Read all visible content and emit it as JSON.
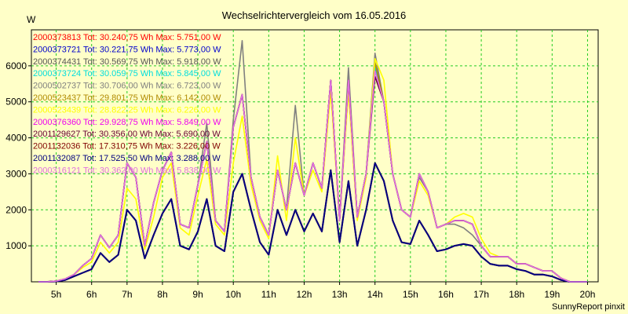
{
  "chart_data": {
    "type": "line",
    "title": "Wechselrichtervergleich vom 16.05.2016",
    "ylabel": "W",
    "footer": "SunnyReport pinxit",
    "ylim": [
      0,
      7000
    ],
    "yticks": [
      1000,
      2000,
      3000,
      4000,
      5000,
      6000
    ],
    "xlim": [
      4.3,
      20.3
    ],
    "xticks": [
      5,
      6,
      7,
      8,
      9,
      10,
      11,
      12,
      13,
      14,
      15,
      16,
      17,
      18,
      19,
      20
    ],
    "xticklabels": [
      "5h",
      "6h",
      "7h",
      "8h",
      "9h",
      "10h",
      "11h",
      "12h",
      "13h",
      "14h",
      "15h",
      "16h",
      "17h",
      "18h",
      "19h",
      "20h"
    ],
    "grid": true,
    "legend_position": "top-left",
    "x": [
      4.5,
      4.75,
      5,
      5.25,
      5.5,
      5.75,
      6,
      6.25,
      6.5,
      6.75,
      7,
      7.25,
      7.5,
      7.75,
      8,
      8.25,
      8.5,
      8.75,
      9,
      9.25,
      9.5,
      9.75,
      10,
      10.25,
      10.5,
      10.75,
      11,
      11.25,
      11.5,
      11.75,
      12,
      12.25,
      12.5,
      12.75,
      13,
      13.25,
      13.5,
      13.75,
      14,
      14.25,
      14.5,
      14.75,
      15,
      15.25,
      15.5,
      15.75,
      16,
      16.25,
      16.5,
      16.75,
      17,
      17.25,
      17.5,
      17.75,
      18,
      18.25,
      18.5,
      18.75,
      19,
      19.25,
      19.5,
      19.75,
      20
    ],
    "series": [
      {
        "name": "2000373813 Tot: 30.240,75 Wh Max: 5.751,00 W",
        "color": "#ff0000",
        "values": [
          0,
          0,
          20,
          80,
          200,
          450,
          650,
          1300,
          950,
          1300,
          3300,
          2900,
          1000,
          2200,
          3100,
          3600,
          1600,
          1500,
          2700,
          3900,
          1700,
          1400,
          4300,
          5200,
          2900,
          1800,
          1300,
          3100,
          2000,
          3300,
          2400,
          3300,
          2600,
          5600,
          1700,
          5600,
          1800,
          3000,
          6000,
          5000,
          3000,
          2000,
          1800,
          3000,
          2500,
          1500,
          1600,
          1700,
          1700,
          1600,
          1000,
          700,
          700,
          700,
          500,
          500,
          400,
          300,
          300,
          100,
          0,
          0,
          0
        ]
      },
      {
        "name": "2000373721 Tot: 30.221,75 Wh Max: 5.773,00 W",
        "color": "#0000cc",
        "values": [
          0,
          0,
          20,
          80,
          200,
          450,
          650,
          1300,
          950,
          1300,
          3300,
          2900,
          1000,
          2200,
          3100,
          3600,
          1600,
          1500,
          2700,
          3900,
          1700,
          1400,
          4300,
          5200,
          2900,
          1800,
          1300,
          3100,
          2000,
          3300,
          2400,
          3300,
          2600,
          5600,
          1700,
          5600,
          1800,
          3000,
          6000,
          5000,
          3000,
          2000,
          1800,
          3000,
          2500,
          1500,
          1600,
          1700,
          1700,
          1600,
          1000,
          700,
          700,
          700,
          500,
          500,
          400,
          300,
          300,
          100,
          0,
          0,
          0
        ]
      },
      {
        "name": "2000374431 Tot: 30.569,75 Wh Max: 5.918,00 W",
        "color": "#555555",
        "values": [
          0,
          0,
          20,
          80,
          200,
          450,
          650,
          1300,
          950,
          1300,
          3300,
          2900,
          1000,
          2200,
          3100,
          3600,
          1600,
          1500,
          2700,
          3900,
          1700,
          1400,
          4300,
          5200,
          2900,
          1800,
          1300,
          3100,
          2000,
          3300,
          2400,
          3300,
          2600,
          5600,
          1700,
          5600,
          1800,
          3000,
          6000,
          5000,
          3000,
          2000,
          1800,
          3000,
          2500,
          1500,
          1600,
          1700,
          1700,
          1600,
          1000,
          700,
          700,
          700,
          500,
          500,
          400,
          300,
          300,
          100,
          0,
          0,
          0
        ]
      },
      {
        "name": "2000373724 Tot: 30.059,75 Wh Max: 5.845,00 W",
        "color": "#00dddd",
        "values": [
          0,
          0,
          20,
          80,
          200,
          450,
          650,
          1300,
          950,
          1300,
          3300,
          2900,
          1000,
          2200,
          3100,
          3600,
          1600,
          1500,
          2700,
          3900,
          1700,
          1400,
          4300,
          5200,
          2900,
          1800,
          1300,
          3100,
          2000,
          3300,
          2400,
          3300,
          2600,
          5600,
          1700,
          5600,
          1800,
          3000,
          6000,
          5000,
          3000,
          2000,
          1800,
          3000,
          2500,
          1500,
          1600,
          1700,
          1700,
          1600,
          1000,
          700,
          700,
          700,
          500,
          500,
          400,
          300,
          300,
          100,
          0,
          0,
          0
        ]
      },
      {
        "name": "2000502737 Tot: 30.706,00 Wh Max: 6.723,00 W",
        "color": "#808080",
        "values": [
          0,
          0,
          20,
          80,
          200,
          450,
          650,
          1300,
          950,
          1300,
          3300,
          2900,
          1000,
          2200,
          3100,
          3600,
          1600,
          1500,
          2700,
          4400,
          1700,
          1400,
          4500,
          6700,
          2900,
          1800,
          1300,
          3100,
          2000,
          4900,
          2400,
          3300,
          2600,
          5600,
          1700,
          5950,
          1800,
          3000,
          6350,
          5000,
          3000,
          2000,
          1800,
          2900,
          2500,
          1500,
          1600,
          1600,
          1500,
          1300,
          1000,
          700,
          700,
          700,
          500,
          500,
          400,
          300,
          300,
          100,
          0,
          0,
          0
        ]
      },
      {
        "name": "2000523437 Tot: 29.801,75 Wh Max: 6.142,00 W",
        "color": "#b08a00",
        "values": [
          0,
          0,
          20,
          80,
          200,
          450,
          650,
          1300,
          950,
          1300,
          3300,
          2900,
          1000,
          2200,
          3100,
          3600,
          1600,
          1500,
          2700,
          3900,
          1700,
          1400,
          4300,
          5200,
          2900,
          1800,
          1300,
          3100,
          2000,
          3300,
          2400,
          3300,
          2600,
          5600,
          1700,
          5600,
          1800,
          3000,
          6100,
          5000,
          3000,
          2000,
          1800,
          3000,
          2500,
          1500,
          1600,
          1700,
          1700,
          1600,
          1000,
          700,
          700,
          700,
          500,
          500,
          400,
          300,
          300,
          100,
          0,
          0,
          0
        ]
      },
      {
        "name": "2000523439 Tot: 28.822,25 Wh Max: 6.226,00 W",
        "color": "#ffff00",
        "values": [
          0,
          0,
          20,
          80,
          200,
          400,
          550,
          1100,
          800,
          1100,
          2600,
          2300,
          900,
          1800,
          2900,
          3300,
          1500,
          1300,
          2400,
          3400,
          1600,
          1300,
          3300,
          4600,
          2700,
          1700,
          1200,
          3500,
          1700,
          4000,
          2400,
          3100,
          2500,
          5300,
          1700,
          5300,
          1700,
          2900,
          6200,
          5600,
          3000,
          2000,
          1800,
          2800,
          2400,
          1500,
          1600,
          1800,
          1900,
          1800,
          1200,
          800,
          700,
          700,
          500,
          500,
          400,
          300,
          300,
          100,
          0,
          0,
          0
        ]
      },
      {
        "name": "2000376360 Tot: 29.928,75 Wh Max: 5.849,00 W",
        "color": "#ee00ee",
        "values": [
          0,
          0,
          20,
          80,
          200,
          450,
          650,
          1300,
          950,
          1300,
          3300,
          2900,
          1000,
          2200,
          3100,
          3600,
          1600,
          1500,
          2700,
          3900,
          1700,
          1400,
          4300,
          5200,
          2900,
          1800,
          1300,
          3100,
          2000,
          3300,
          2400,
          3300,
          2600,
          5600,
          1700,
          5600,
          1800,
          3000,
          5850,
          5000,
          3000,
          2000,
          1800,
          3000,
          2500,
          1500,
          1600,
          1700,
          1700,
          1600,
          1000,
          700,
          700,
          700,
          500,
          500,
          400,
          300,
          300,
          100,
          0,
          0,
          0
        ]
      },
      {
        "name": "2001129627 Tot: 30.356,00 Wh Max: 5.690,00 W",
        "color": "#660033",
        "values": [
          0,
          0,
          20,
          80,
          200,
          450,
          650,
          1300,
          950,
          1300,
          3300,
          2900,
          1000,
          2200,
          3100,
          3600,
          1600,
          1500,
          2700,
          3900,
          1700,
          1400,
          4300,
          5200,
          2900,
          1800,
          1300,
          3100,
          2000,
          3300,
          2400,
          3300,
          2600,
          5600,
          1700,
          5600,
          1800,
          3000,
          5700,
          5000,
          3000,
          2000,
          1800,
          3000,
          2500,
          1500,
          1600,
          1700,
          1700,
          1600,
          1000,
          700,
          700,
          700,
          500,
          500,
          400,
          300,
          300,
          100,
          0,
          0,
          0
        ]
      },
      {
        "name": "2001132036 Tot: 17.310,75 Wh Max: 3.226,00 W",
        "color": "#800000",
        "values": [
          0,
          0,
          10,
          50,
          150,
          250,
          350,
          800,
          550,
          750,
          2000,
          1700,
          650,
          1300,
          1900,
          2300,
          1000,
          900,
          1400,
          2300,
          1000,
          850,
          2500,
          3000,
          2000,
          1100,
          750,
          2000,
          1300,
          2000,
          1400,
          1900,
          1400,
          3100,
          1100,
          2800,
          1000,
          2000,
          3300,
          2800,
          1700,
          1100,
          1050,
          1700,
          1300,
          850,
          900,
          1000,
          1050,
          1000,
          700,
          500,
          450,
          450,
          350,
          300,
          200,
          200,
          150,
          50,
          0,
          0,
          0
        ]
      },
      {
        "name": "2001132087 Tot: 17.525,50 Wh Max: 3.288,00 W",
        "color": "#000080",
        "values": [
          0,
          0,
          10,
          50,
          150,
          250,
          350,
          800,
          550,
          750,
          2000,
          1700,
          650,
          1300,
          1900,
          2300,
          1000,
          900,
          1400,
          2300,
          1000,
          850,
          2500,
          3000,
          2000,
          1100,
          750,
          2000,
          1300,
          2000,
          1400,
          1900,
          1400,
          3100,
          1100,
          2800,
          1000,
          2000,
          3300,
          2800,
          1700,
          1100,
          1050,
          1700,
          1300,
          850,
          900,
          1000,
          1050,
          1000,
          700,
          500,
          450,
          450,
          350,
          300,
          200,
          200,
          150,
          50,
          0,
          0,
          0
        ]
      },
      {
        "name": "2000316121 Tot: 30.362,00 Wh Max: 5.838,00 W",
        "color": "#e070e0",
        "values": [
          0,
          0,
          20,
          80,
          200,
          450,
          650,
          1300,
          950,
          1300,
          3300,
          2900,
          1000,
          2200,
          3100,
          3600,
          1600,
          1500,
          2700,
          3900,
          1700,
          1400,
          4300,
          5200,
          2900,
          1800,
          1300,
          3100,
          2000,
          3300,
          2400,
          3300,
          2600,
          5600,
          1700,
          5600,
          1800,
          3000,
          5850,
          5000,
          3000,
          2000,
          1800,
          3000,
          2500,
          1500,
          1600,
          1700,
          1700,
          1600,
          1000,
          700,
          700,
          700,
          500,
          500,
          400,
          300,
          300,
          100,
          0,
          0,
          0
        ]
      }
    ]
  }
}
